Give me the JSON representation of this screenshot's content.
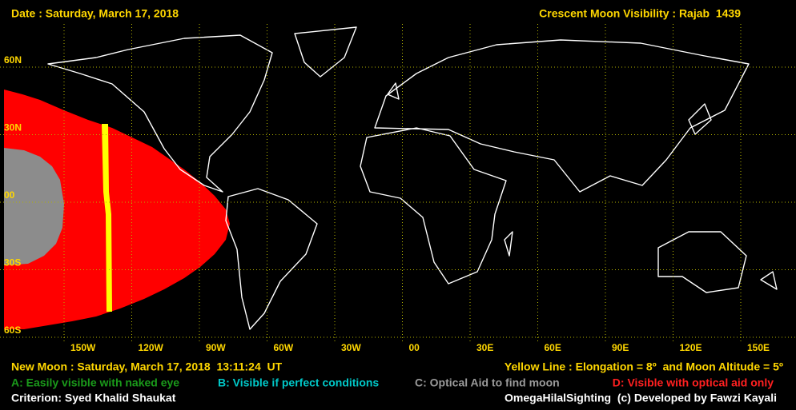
{
  "header": {
    "date": "Date : Saturday, March 17, 2018",
    "title": "Crescent Moon Visibility : Rajab  1439"
  },
  "map": {
    "lat_labels": [
      "60N",
      "30N",
      "00",
      "30S",
      "60S"
    ],
    "lon_labels": [
      "150W",
      "120W",
      "90W",
      "60W",
      "30W",
      "00",
      "30E",
      "60E",
      "90E",
      "120E",
      "150E"
    ]
  },
  "footer": {
    "new_moon": "New Moon : Saturday, March 17, 2018  13:11:24  UT",
    "yellow_line": "Yellow Line : Elongation = 8º  and Moon Altitude = 5º",
    "legend_a": "A: Easily visible with naked eye",
    "legend_b": "B: Visible if perfect conditions",
    "legend_c": "C: Optical Aid to find moon",
    "legend_d": "D: Visible with optical aid only",
    "criterion": "Criterion: Syed Khalid Shaukat",
    "credit": "OmegaHilalSighting  (c) Developed by Fawzi Kayali"
  }
}
